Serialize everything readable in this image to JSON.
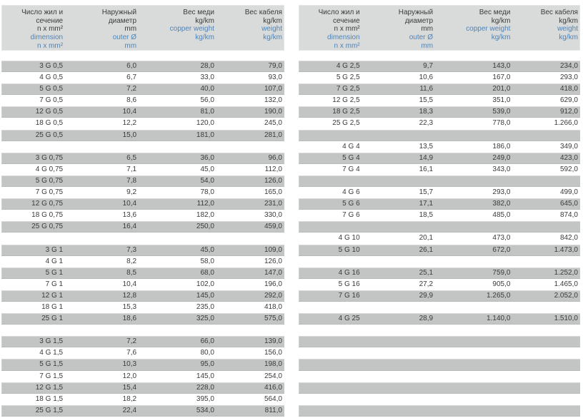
{
  "colors": {
    "header_bg": "#d9dbdb",
    "row_gray": "#c3c5c5",
    "text": "#3b3b3b",
    "translation_blue": "#4e84b8"
  },
  "header": {
    "columns": [
      {
        "ru": [
          "Число жил и",
          "сечение",
          "n x mm²"
        ],
        "en": [
          "dimension",
          "n x mm²"
        ]
      },
      {
        "ru": [
          "Наружный",
          "диаметр",
          "mm"
        ],
        "en": [
          "outer Ø",
          "mm"
        ]
      },
      {
        "ru": [
          "Вес меди",
          "kg/km"
        ],
        "en": [
          "copper weight",
          "kg/km"
        ]
      },
      {
        "ru": [
          "Вес кабеля",
          "kg/km"
        ],
        "en": [
          "weight",
          "kg/km"
        ]
      }
    ]
  },
  "left_table": {
    "rows": [
      [
        "3 G 0,5",
        "6,0",
        "28,0",
        "79,0"
      ],
      [
        "4 G 0,5",
        "6,7",
        "33,0",
        "93,0"
      ],
      [
        "5 G 0,5",
        "7,2",
        "40,0",
        "107,0"
      ],
      [
        "7 G 0,5",
        "8,6",
        "56,0",
        "132,0"
      ],
      [
        "12 G 0,5",
        "10,4",
        "81,0",
        "190,0"
      ],
      [
        "18 G 0,5",
        "12,2",
        "120,0",
        "245,0"
      ],
      [
        "25 G 0,5",
        "15,0",
        "181,0",
        "281,0"
      ],
      [
        "",
        "",
        "",
        ""
      ],
      [
        "3 G 0,75",
        "6,5",
        "36,0",
        "96,0"
      ],
      [
        "4 G 0,75",
        "7,1",
        "45,0",
        "112,0"
      ],
      [
        "5 G 0,75",
        "7,8",
        "54,0",
        "126,0"
      ],
      [
        "7 G 0,75",
        "9,2",
        "78,0",
        "165,0"
      ],
      [
        "12 G 0,75",
        "10,4",
        "112,0",
        "231,0"
      ],
      [
        "18 G 0,75",
        "13,6",
        "182,0",
        "330,0"
      ],
      [
        "25 G 0,75",
        "16,4",
        "250,0",
        "459,0"
      ],
      [
        "",
        "",
        "",
        ""
      ],
      [
        "3 G 1",
        "7,3",
        "45,0",
        "109,0"
      ],
      [
        "4 G 1",
        "8,2",
        "58,0",
        "126,0"
      ],
      [
        "5 G 1",
        "8,5",
        "68,0",
        "147,0"
      ],
      [
        "7 G 1",
        "10,4",
        "102,0",
        "196,0"
      ],
      [
        "12 G 1",
        "12,8",
        "145,0",
        "292,0"
      ],
      [
        "18 G 1",
        "15,3",
        "235,0",
        "418,0"
      ],
      [
        "25 G 1",
        "18,6",
        "325,0",
        "575,0"
      ],
      [
        "",
        "",
        "",
        ""
      ],
      [
        "3 G 1,5",
        "7,2",
        "66,0",
        "139,0"
      ],
      [
        "4 G 1,5",
        "7,6",
        "80,0",
        "156,0"
      ],
      [
        "5 G 1,5",
        "10,3",
        "95,0",
        "198,0"
      ],
      [
        "7 G 1,5",
        "12,0",
        "145,0",
        "254,0"
      ],
      [
        "12 G 1,5",
        "15,4",
        "228,0",
        "416,0"
      ],
      [
        "18 G 1,5",
        "18,2",
        "395,0",
        "564,0"
      ],
      [
        "25 G 1,5",
        "22,4",
        "534,0",
        "811,0"
      ]
    ]
  },
  "right_table": {
    "rows": [
      [
        "4 G 2,5",
        "9,7",
        "143,0",
        "234,0"
      ],
      [
        "5 G 2,5",
        "10,6",
        "167,0",
        "293,0"
      ],
      [
        "7 G 2,5",
        "11,6",
        "201,0",
        "418,0"
      ],
      [
        "12 G 2,5",
        "15,5",
        "351,0",
        "629,0"
      ],
      [
        "18 G 2,5",
        "18,3",
        "539,0",
        "912,0"
      ],
      [
        "25 G 2,5",
        "22,3",
        "778,0",
        "1.266,0"
      ],
      [
        "",
        "",
        "",
        ""
      ],
      [
        "4 G 4",
        "13,5",
        "186,0",
        "349,0"
      ],
      [
        "5 G 4",
        "14,9",
        "249,0",
        "423,0"
      ],
      [
        "7 G 4",
        "16,1",
        "343,0",
        "592,0"
      ],
      [
        "",
        "",
        "",
        ""
      ],
      [
        "4 G 6",
        "15,7",
        "293,0",
        "499,0"
      ],
      [
        "5 G 6",
        "17,1",
        "382,0",
        "645,0"
      ],
      [
        "7 G 6",
        "18,5",
        "485,0",
        "874,0"
      ],
      [
        "",
        "",
        "",
        ""
      ],
      [
        "4 G 10",
        "20,1",
        "473,0",
        "842,0"
      ],
      [
        "5 G 10",
        "26,1",
        "672,0",
        "1.473,0"
      ],
      [
        "",
        "",
        "",
        ""
      ],
      [
        "4 G 16",
        "25,1",
        "759,0",
        "1.252,0"
      ],
      [
        "5 G 16",
        "27,2",
        "905,0",
        "1.465,0"
      ],
      [
        "7 G 16",
        "29,9",
        "1.265,0",
        "2.052,0"
      ],
      [
        "",
        "",
        "",
        ""
      ],
      [
        "4 G 25",
        "28,9",
        "1.140,0",
        "1.510,0"
      ],
      [
        "",
        "",
        "",
        ""
      ],
      [
        "",
        "",
        "",
        ""
      ],
      [
        "",
        "",
        "",
        ""
      ],
      [
        "",
        "",
        "",
        ""
      ],
      [
        "",
        "",
        "",
        ""
      ],
      [
        "",
        "",
        "",
        ""
      ],
      [
        "",
        "",
        "",
        ""
      ],
      [
        "",
        "",
        "",
        ""
      ]
    ]
  }
}
